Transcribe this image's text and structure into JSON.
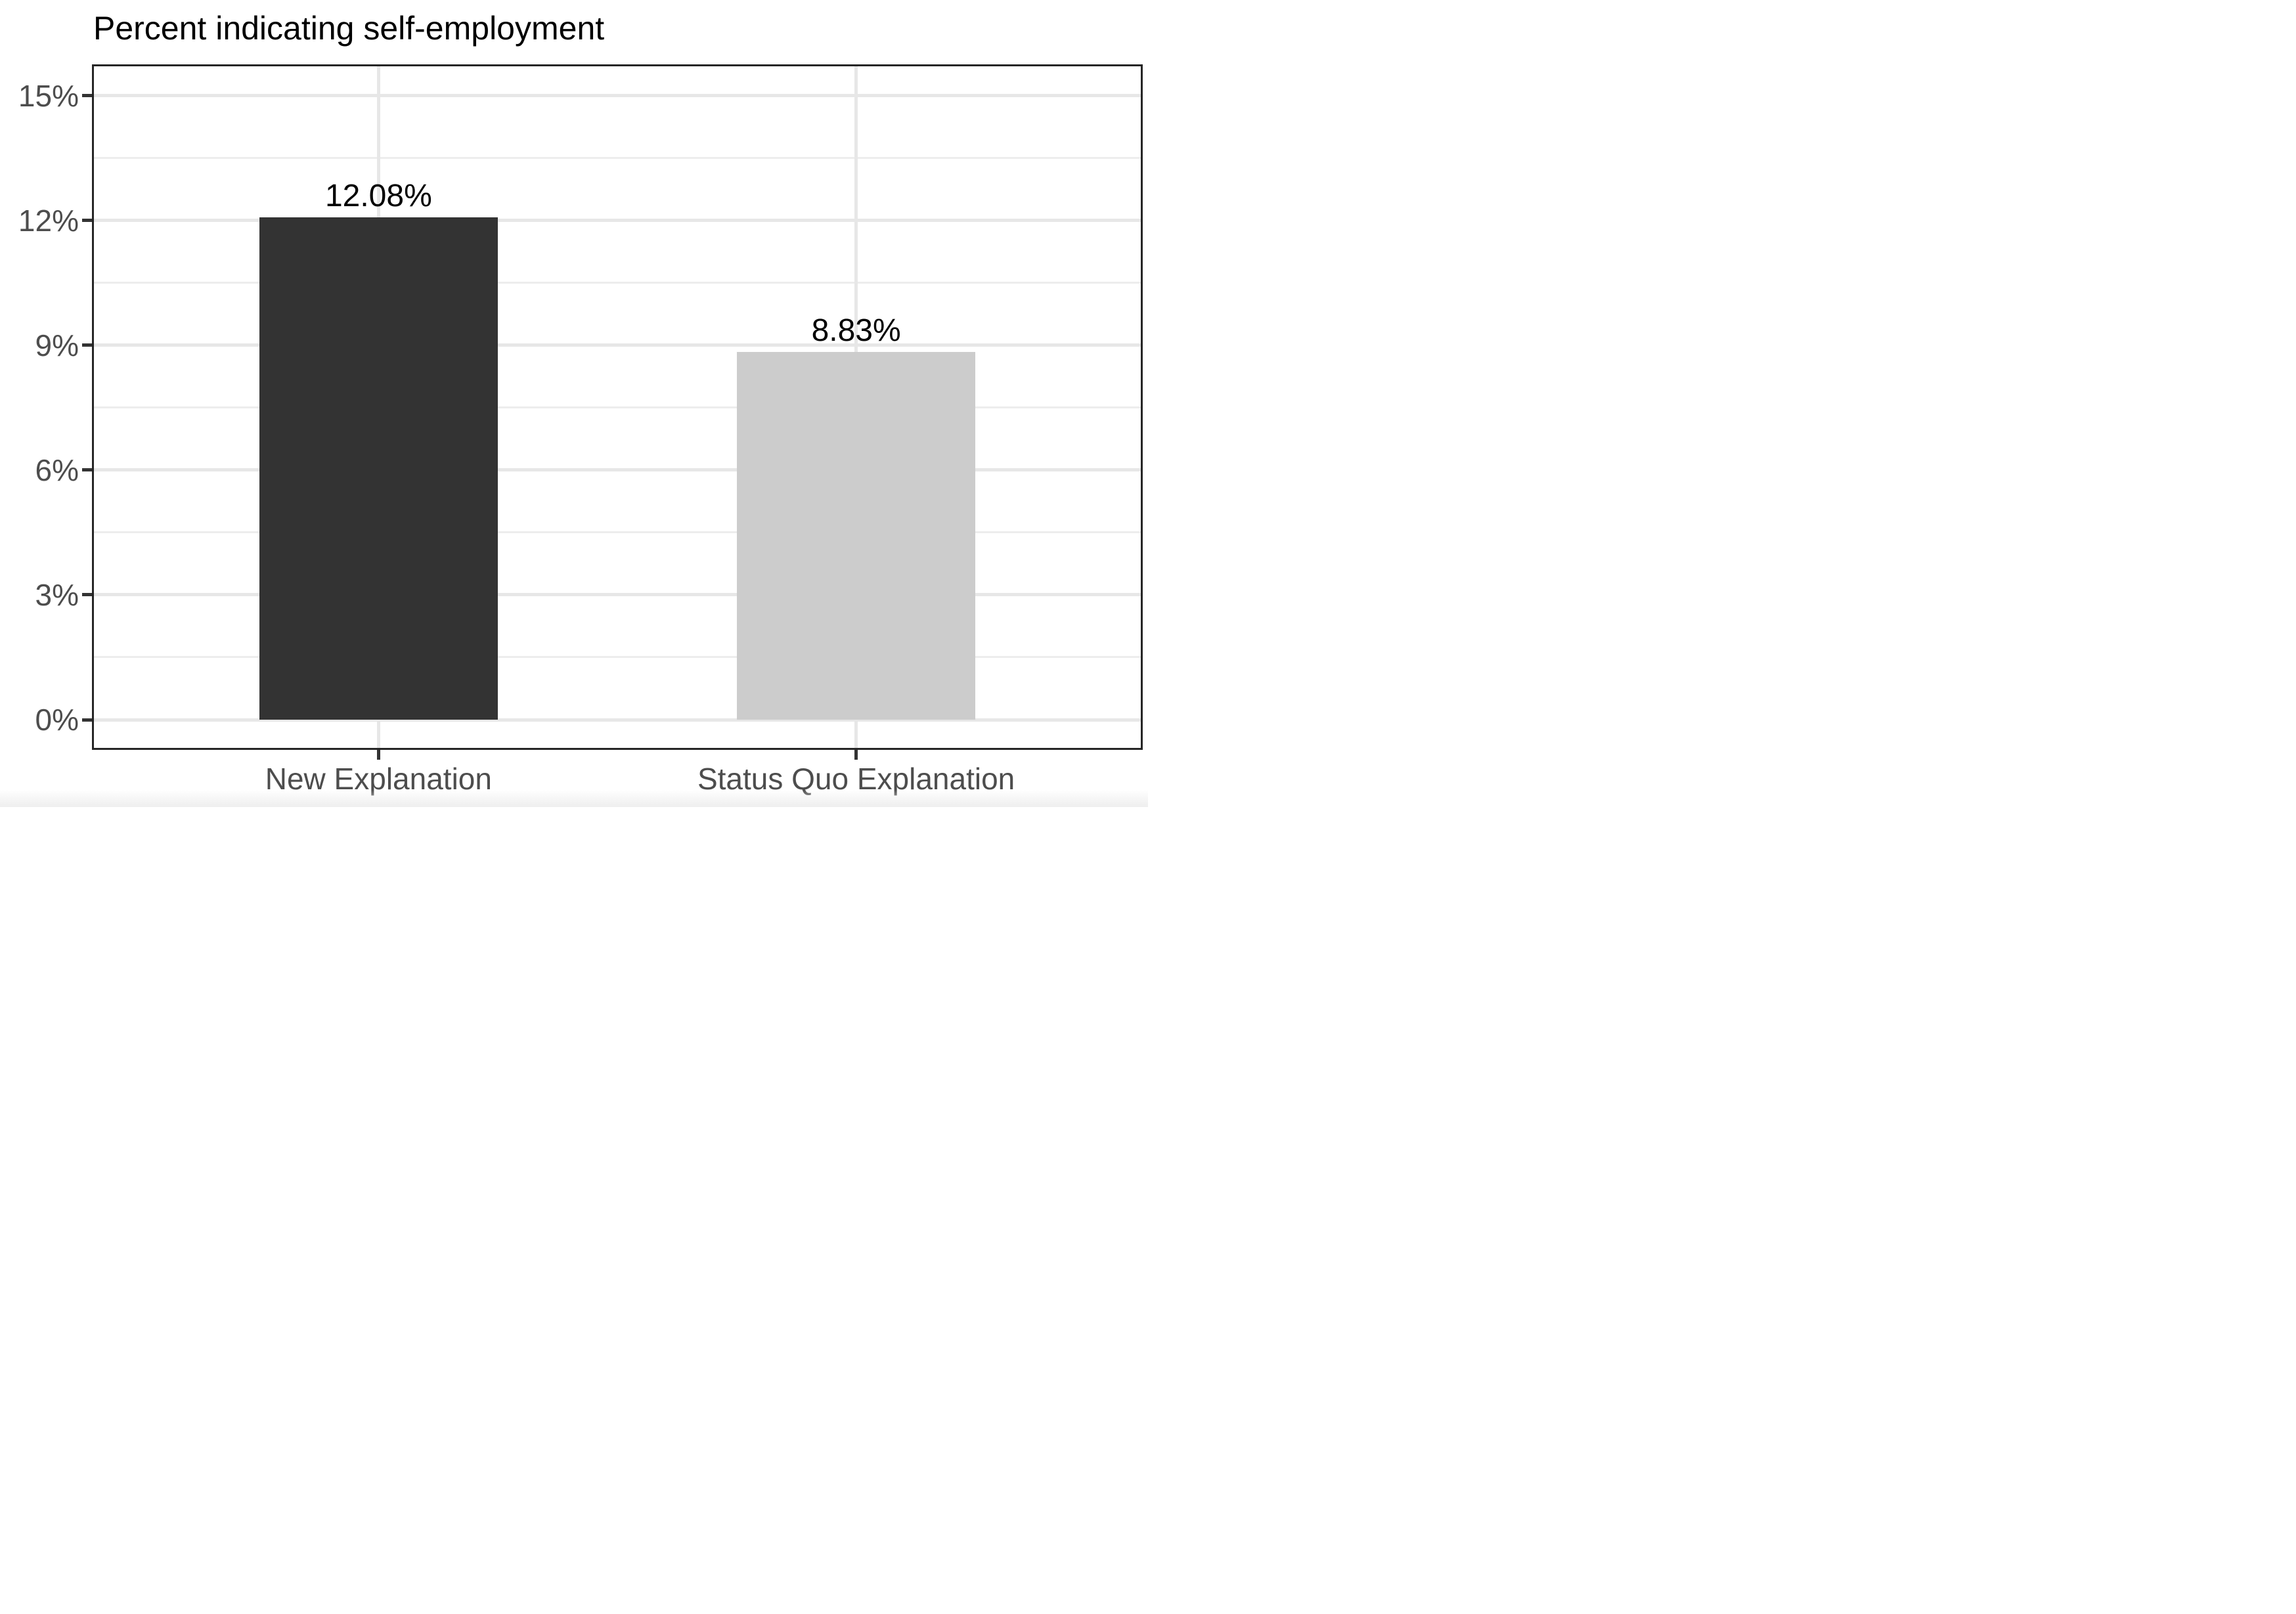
{
  "title": "Percent indicating self-employment",
  "chart_data": {
    "type": "bar",
    "title": "Percent indicating self-employment",
    "categories": [
      "New Explanation",
      "Status Quo Explanation"
    ],
    "values": [
      12.08,
      8.83
    ],
    "value_labels": [
      "12.08%",
      "8.83%"
    ],
    "xlabel": "",
    "ylabel": "",
    "ylim": [
      0,
      15
    ],
    "ytick_values": [
      0,
      3,
      6,
      9,
      12,
      15
    ],
    "ytick_labels": [
      "0%",
      "3%",
      "6%",
      "9%",
      "12%",
      "15%"
    ],
    "yminor_values": [
      1.5,
      4.5,
      7.5,
      10.5,
      13.5
    ],
    "grid": "horizontal major+minor; vertical major at category centers",
    "legend_position": "none",
    "bar_colors": [
      "#333333",
      "#cccccc"
    ]
  },
  "style": {
    "background": "#ffffff",
    "bar_dark": "#333333",
    "bar_light": "#cccccc",
    "grid_major": "#e7e7e7",
    "grid_minor": "#ededed",
    "panel_border": "#262626",
    "tick_color": "#333333",
    "axis_text_color": "#4d4d4d",
    "title_color": "#000000",
    "value_label_color": "#000000"
  }
}
